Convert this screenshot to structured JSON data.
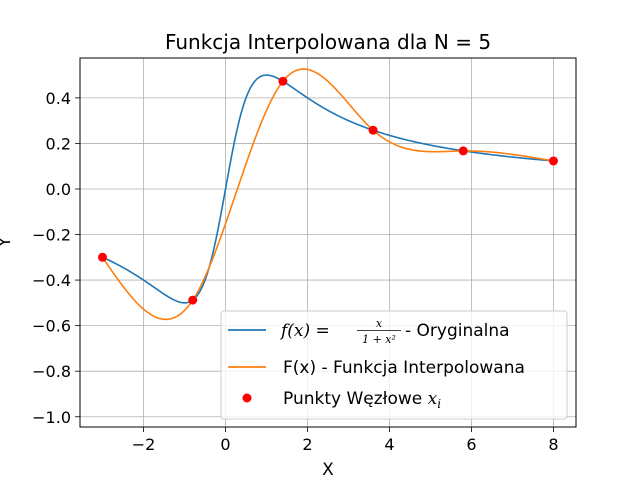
{
  "chart_data": {
    "type": "line",
    "title": "Funkcja Interpolowana dla N = 5",
    "xlabel": "X",
    "ylabel": "Y",
    "xlim": [
      -3.55,
      8.55
    ],
    "ylim": [
      -1.045,
      0.575
    ],
    "grid": true,
    "xticks": [
      -2,
      0,
      2,
      4,
      6,
      8
    ],
    "xtick_labels": [
      "−2",
      "0",
      "2",
      "4",
      "6",
      "8"
    ],
    "yticks": [
      -1.0,
      -0.8,
      -0.6,
      -0.4,
      -0.2,
      0.0,
      0.2,
      0.4
    ],
    "ytick_labels": [
      "−1.0",
      "−0.8",
      "−0.6",
      "−0.4",
      "−0.2",
      "0.0",
      "0.2",
      "0.4"
    ],
    "legend_position": "lower-right",
    "series": [
      {
        "name": "f(x) = x/(1+x²) - Oryginalna",
        "legend_label": {
          "prefix": "f(x) = ",
          "numerator": "x",
          "denominator": "1 + x²",
          "suffix": " - Oryginalna"
        },
        "color": "#1f77b4",
        "function": "x/(1+x^2)",
        "domain": [
          -3,
          8
        ]
      },
      {
        "name": "F(x) - Funkcja Interpolowana",
        "legend_label": {
          "text": "F(x) - Funkcja Interpolowana"
        },
        "color": "#ff7f0e",
        "function": "cubic spline through nodes",
        "domain": [
          -3,
          8
        ]
      },
      {
        "name": "Punkty Węzłowe x_i",
        "legend_label": {
          "text": "Punkty Węzłowe ",
          "math": "x",
          "sub": "i"
        },
        "color": "#ff0000",
        "type": "scatter",
        "points": [
          {
            "x": -3.0,
            "y": -0.3
          },
          {
            "x": -0.8,
            "y": -0.488
          },
          {
            "x": 1.4,
            "y": 0.473
          },
          {
            "x": 3.6,
            "y": 0.258
          },
          {
            "x": 5.8,
            "y": 0.167
          },
          {
            "x": 8.0,
            "y": 0.123
          }
        ]
      }
    ]
  }
}
